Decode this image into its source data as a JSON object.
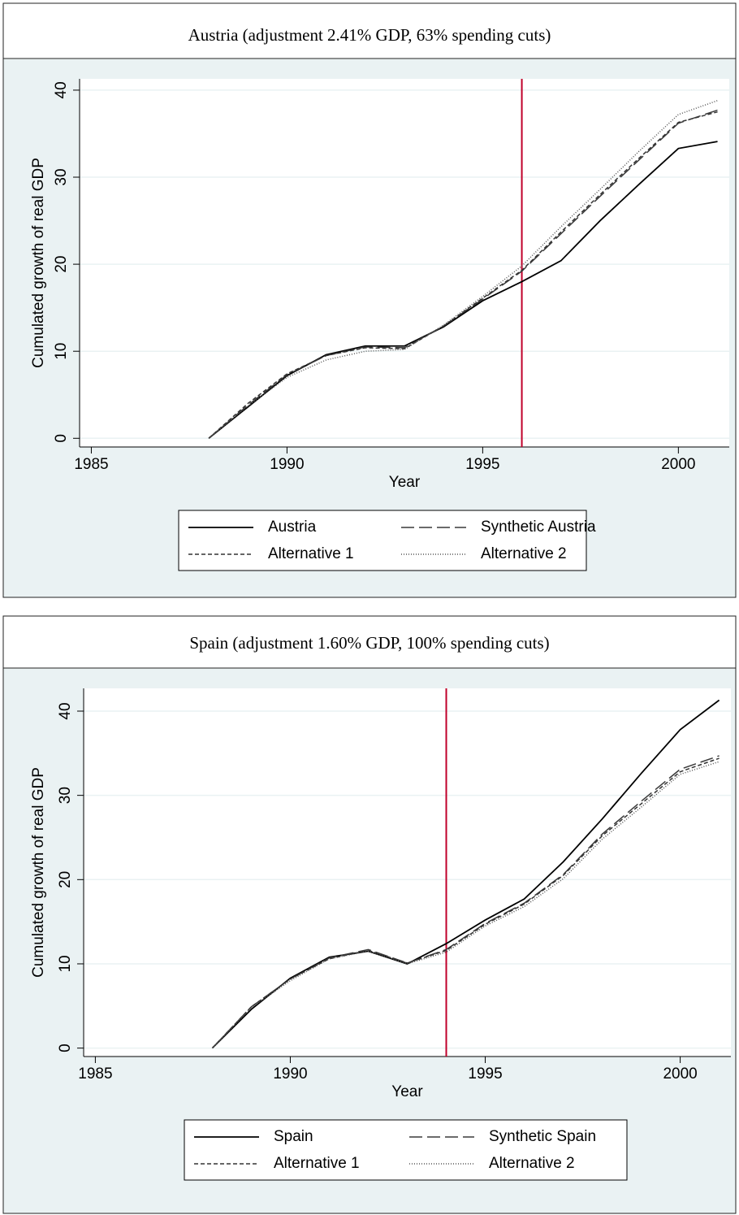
{
  "chart_data": [
    {
      "type": "line",
      "title": "Austria (adjustment 2.41% GDP, 63% spending cuts)",
      "x_label": "Year",
      "y_label": "Cumulated growth of real GDP",
      "x": [
        1988,
        1989,
        1990,
        1991,
        1992,
        1993,
        1994,
        1995,
        1996,
        1997,
        1998,
        1999,
        2000,
        2001
      ],
      "series": [
        {
          "name": "Austria",
          "color": "#000000",
          "style": "solid",
          "values": [
            0,
            3.6,
            7.2,
            9.6,
            10.6,
            10.6,
            12.8,
            15.8,
            18.0,
            20.4,
            25.0,
            29.2,
            33.3,
            34.1
          ]
        },
        {
          "name": "Synthetic Austria",
          "color": "#3a3a3a",
          "style": "longdash",
          "values": [
            0,
            3.8,
            7.3,
            9.5,
            10.5,
            10.4,
            12.9,
            16.0,
            19.2,
            23.5,
            27.8,
            32.0,
            36.2,
            37.7
          ]
        },
        {
          "name": "Alternative 1",
          "color": "#333333",
          "style": "shortdash",
          "values": [
            0,
            4.0,
            7.4,
            9.5,
            10.4,
            10.3,
            12.9,
            16.1,
            19.3,
            23.7,
            28.0,
            32.2,
            36.3,
            37.5
          ]
        },
        {
          "name": "Alternative 2",
          "color": "#555555",
          "style": "dot",
          "values": [
            0,
            3.7,
            7.0,
            9.0,
            10.0,
            10.2,
            13.0,
            16.3,
            19.8,
            24.3,
            28.6,
            33.0,
            37.2,
            38.8
          ]
        }
      ],
      "xlim": [
        1984.7,
        2001.3
      ],
      "ylim": [
        -1,
        41.3
      ],
      "xticks": [
        1985,
        1990,
        1995,
        2000
      ],
      "yticks": [
        0,
        10,
        20,
        30,
        40
      ],
      "grid": true,
      "vline": 1996,
      "vline_color": "#c0002a"
    },
    {
      "type": "line",
      "title": "Spain (adjustment 1.60% GDP, 100% spending cuts)",
      "x_label": "Year",
      "y_label": "Cumulated growth of real GDP",
      "x": [
        1988,
        1989,
        1990,
        1991,
        1992,
        1993,
        1994,
        1995,
        1996,
        1997,
        1998,
        1999,
        2000,
        2001
      ],
      "series": [
        {
          "name": "Spain",
          "color": "#000000",
          "style": "solid",
          "values": [
            0,
            4.6,
            8.3,
            10.8,
            11.5,
            10.0,
            12.4,
            15.2,
            17.7,
            22.1,
            27.2,
            32.6,
            37.8,
            41.3
          ]
        },
        {
          "name": "Synthetic Spain",
          "color": "#3a3a3a",
          "style": "longdash",
          "values": [
            0,
            4.9,
            8.2,
            10.7,
            11.7,
            10.1,
            11.7,
            14.8,
            17.2,
            20.6,
            25.4,
            29.3,
            33.1,
            34.7
          ]
        },
        {
          "name": "Alternative 1",
          "color": "#333333",
          "style": "shortdash",
          "values": [
            0,
            4.9,
            8.2,
            10.6,
            11.6,
            10.1,
            11.6,
            14.7,
            17.1,
            20.5,
            25.2,
            29.0,
            32.8,
            34.4
          ]
        },
        {
          "name": "Alternative 2",
          "color": "#555555",
          "style": "dot",
          "values": [
            0,
            4.8,
            8.0,
            10.6,
            11.5,
            10.0,
            11.4,
            14.5,
            16.8,
            20.1,
            24.8,
            28.6,
            32.5,
            34.0
          ]
        }
      ],
      "xlim": [
        1984.7,
        2001.3
      ],
      "ylim": [
        -1,
        42.7
      ],
      "xticks": [
        1985,
        1990,
        1995,
        2000
      ],
      "yticks": [
        0,
        10,
        20,
        30,
        40
      ],
      "grid": true,
      "vline": 1994,
      "vline_color": "#c0002a"
    }
  ]
}
